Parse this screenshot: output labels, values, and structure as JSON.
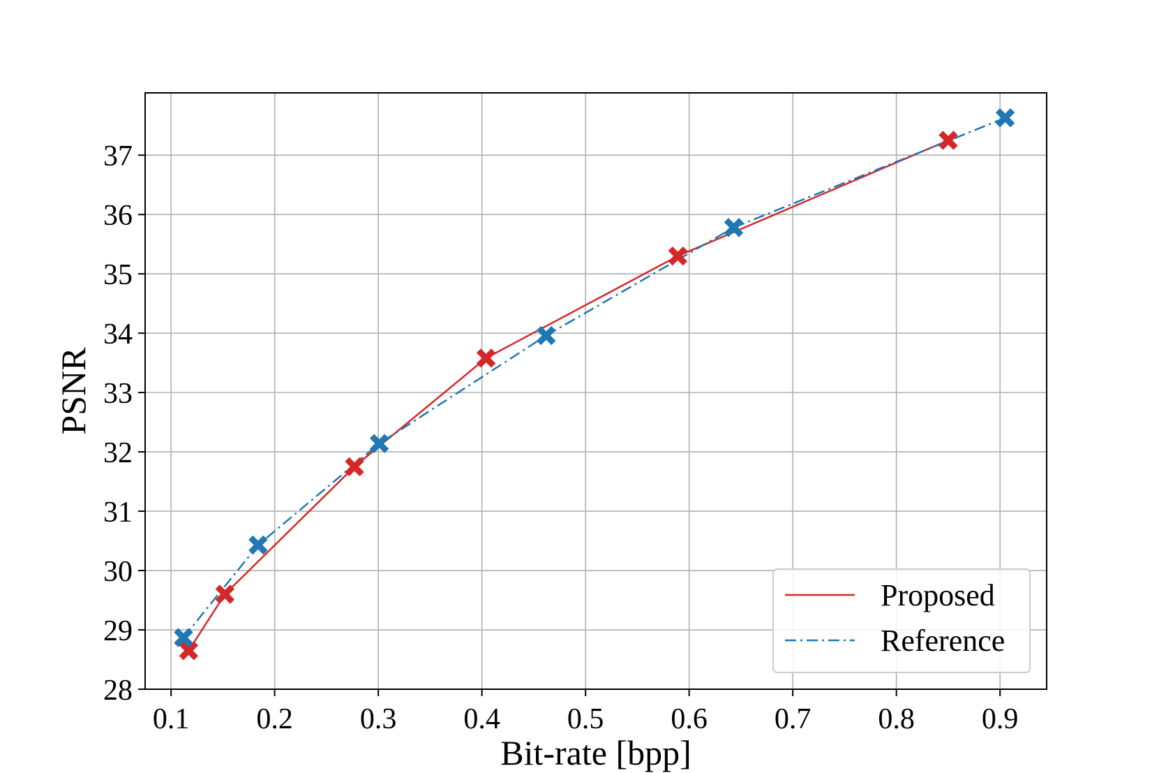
{
  "chart_data": {
    "type": "line",
    "title": "",
    "xlabel": "Bit-rate [bpp]",
    "ylabel": "PSNR",
    "xlim": [
      0.075,
      0.945
    ],
    "ylim": [
      28,
      38.05
    ],
    "grid": true,
    "legend_position": "lower-right",
    "xticks": [
      0.1,
      0.2,
      0.3,
      0.4,
      0.5,
      0.6,
      0.7,
      0.8,
      0.9
    ],
    "xtick_labels": [
      "0.1",
      "0.2",
      "0.3",
      "0.4",
      "0.5",
      "0.6",
      "0.7",
      "0.8",
      "0.9"
    ],
    "yticks": [
      28,
      29,
      30,
      31,
      32,
      33,
      34,
      35,
      36,
      37
    ],
    "ytick_labels": [
      "28",
      "29",
      "30",
      "31",
      "32",
      "33",
      "34",
      "35",
      "36",
      "37"
    ],
    "series": [
      {
        "name": "Proposed",
        "color": "#d62728",
        "line_style": "solid",
        "marker": "X",
        "x": [
          0.117,
          0.152,
          0.277,
          0.404,
          0.589,
          0.85
        ],
        "y": [
          28.65,
          29.6,
          31.75,
          33.58,
          35.3,
          37.25
        ]
      },
      {
        "name": "Reference",
        "color": "#1f77b4",
        "line_style": "dashdot",
        "marker": "X",
        "x": [
          0.112,
          0.184,
          0.301,
          0.462,
          0.643,
          0.905
        ],
        "y": [
          28.87,
          30.43,
          32.14,
          33.96,
          35.78,
          37.63
        ]
      }
    ]
  }
}
